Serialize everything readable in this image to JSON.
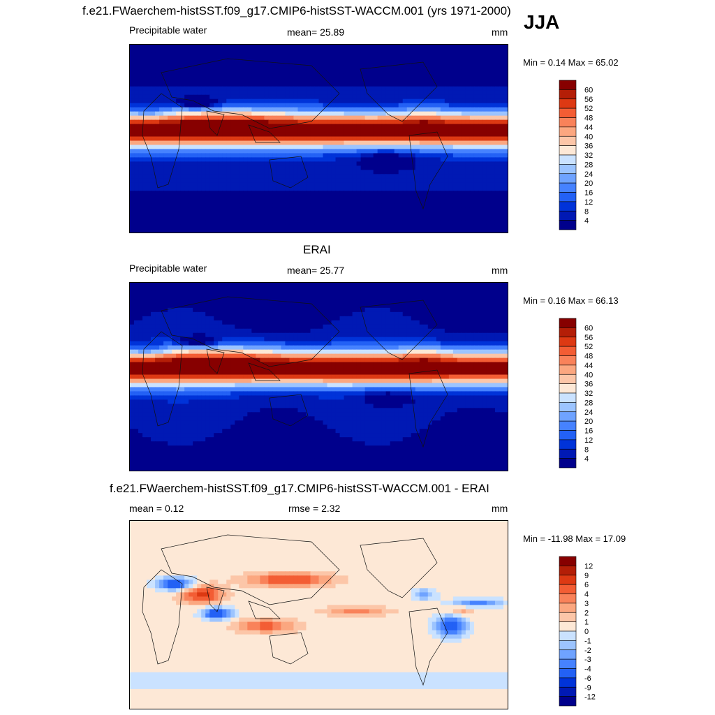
{
  "header": {
    "main_title": "f.e21.FWaerchem-histSST.f09_g17.CMIP6-histSST-WACCM.001 (yrs 1971-2000)",
    "season": "JJA"
  },
  "colors": {
    "pw_scale": [
      "#00008c",
      "#0019b4",
      "#0033d9",
      "#2361f5",
      "#4682ff",
      "#6fa3ff",
      "#9cc4ff",
      "#cae2ff",
      "#fde8d6",
      "#fcc6a8",
      "#fba780",
      "#f9825a",
      "#f35d34",
      "#dd3913",
      "#b41e07",
      "#870000"
    ],
    "diff_scale": [
      "#00008c",
      "#0019b4",
      "#0033d9",
      "#2361f5",
      "#4682ff",
      "#6fa3ff",
      "#9cc4ff",
      "#cae2ff",
      "#fde8d6",
      "#fcc6a8",
      "#fba780",
      "#f9825a",
      "#f35d34",
      "#dd3913",
      "#b41e07",
      "#870000"
    ]
  },
  "chart_data": [
    {
      "type": "heatmap",
      "panel": "model",
      "variable": "Precipitable water",
      "mean_label": "mean=  25.89",
      "units": "mm",
      "minmax_label": "Min =   0.14 Max =  65.02",
      "min": 0.14,
      "max": 65.02,
      "mean": 25.89,
      "colorbar_levels": [
        "60",
        "56",
        "52",
        "48",
        "44",
        "40",
        "36",
        "32",
        "28",
        "24",
        "20",
        "16",
        "12",
        "8",
        "4"
      ],
      "levels": [
        4,
        8,
        12,
        16,
        20,
        24,
        28,
        32,
        36,
        40,
        44,
        48,
        52,
        56,
        60
      ]
    },
    {
      "type": "heatmap",
      "panel": "obs",
      "title": "ERAI",
      "variable": "Precipitable water",
      "mean_label": "mean=  25.77",
      "units": "mm",
      "minmax_label": "Min =   0.16 Max =  66.13",
      "min": 0.16,
      "max": 66.13,
      "mean": 25.77,
      "colorbar_levels": [
        "60",
        "56",
        "52",
        "48",
        "44",
        "40",
        "36",
        "32",
        "28",
        "24",
        "20",
        "16",
        "12",
        "8",
        "4"
      ],
      "levels": [
        4,
        8,
        12,
        16,
        20,
        24,
        28,
        32,
        36,
        40,
        44,
        48,
        52,
        56,
        60
      ]
    },
    {
      "type": "heatmap",
      "panel": "difference",
      "title": "f.e21.FWaerchem-histSST.f09_g17.CMIP6-histSST-WACCM.001 - ERAI",
      "mean_label": "mean =   0.12",
      "rmse_label": "rmse =   2.32",
      "units": "mm",
      "minmax_label": "Min = -11.98 Max =  17.09",
      "min": -11.98,
      "max": 17.09,
      "mean": 0.12,
      "rmse": 2.32,
      "colorbar_levels": [
        "12",
        "9",
        "6",
        "4",
        "3",
        "2",
        "1",
        "0",
        "-1",
        "-2",
        "-3",
        "-4",
        "-6",
        "-9",
        "-12"
      ],
      "levels": [
        -12,
        -9,
        -6,
        -4,
        -3,
        -2,
        -1,
        0,
        1,
        2,
        3,
        4,
        6,
        9,
        12
      ]
    }
  ]
}
